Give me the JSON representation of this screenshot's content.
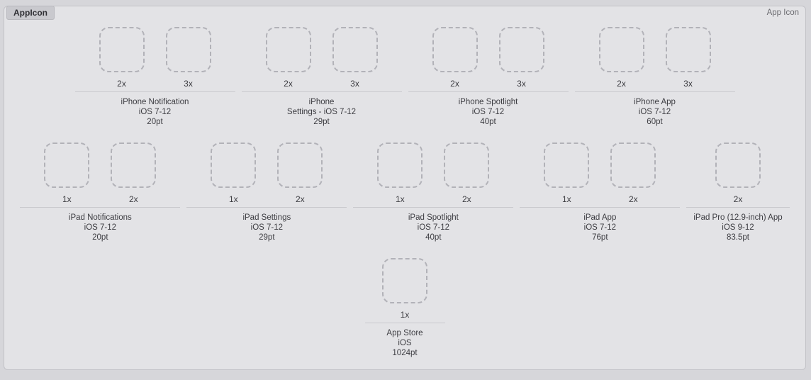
{
  "header": {
    "tab_label": "AppIcon",
    "type_label": "App Icon"
  },
  "rows": [
    {
      "groups": [
        {
          "title_lines": [
            "iPhone Notification",
            "iOS 7-12",
            "20pt"
          ],
          "slots": [
            "2x",
            "3x"
          ]
        },
        {
          "title_lines": [
            "iPhone",
            "Settings - iOS 7-12",
            "29pt"
          ],
          "slots": [
            "2x",
            "3x"
          ]
        },
        {
          "title_lines": [
            "iPhone Spotlight",
            "iOS 7-12",
            "40pt"
          ],
          "slots": [
            "2x",
            "3x"
          ]
        },
        {
          "title_lines": [
            "iPhone App",
            "iOS 7-12",
            "60pt"
          ],
          "slots": [
            "2x",
            "3x"
          ]
        }
      ]
    },
    {
      "groups": [
        {
          "title_lines": [
            "iPad Notifications",
            "iOS 7-12",
            "20pt"
          ],
          "slots": [
            "1x",
            "2x"
          ]
        },
        {
          "title_lines": [
            "iPad Settings",
            "iOS 7-12",
            "29pt"
          ],
          "slots": [
            "1x",
            "2x"
          ]
        },
        {
          "title_lines": [
            "iPad Spotlight",
            "iOS 7-12",
            "40pt"
          ],
          "slots": [
            "1x",
            "2x"
          ]
        },
        {
          "title_lines": [
            "iPad App",
            "iOS 7-12",
            "76pt"
          ],
          "slots": [
            "1x",
            "2x"
          ]
        },
        {
          "title_lines": [
            "iPad Pro (12.9-inch) App",
            "iOS 9-12",
            "83.5pt"
          ],
          "slots": [
            "2x"
          ]
        }
      ]
    },
    {
      "groups": [
        {
          "title_lines": [
            "App Store",
            "iOS",
            "1024pt"
          ],
          "slots": [
            "1x"
          ]
        }
      ]
    }
  ],
  "colors": {
    "page_background": "#d6d6da",
    "panel_background": "#e3e3e6",
    "panel_border": "#c2c2c7",
    "tab_background": "#c9c9ce",
    "well_dash": "#b2b2b8",
    "divider": "#c9c9cd",
    "text_primary": "#3d3d42",
    "text_secondary": "#6b6b70"
  }
}
